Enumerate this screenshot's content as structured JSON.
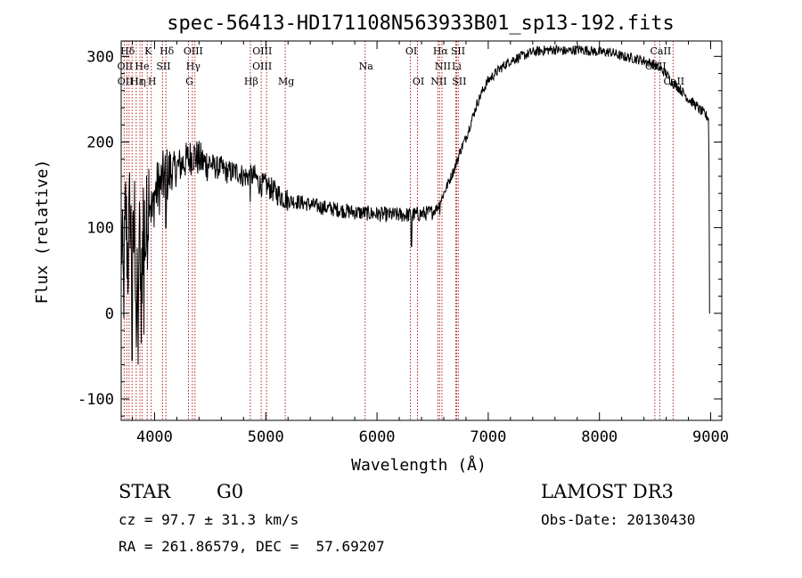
{
  "chart_data": {
    "type": "line",
    "title": "spec-56413-HD171108N563933B01_sp13-192.fits",
    "xlabel": "Wavelength (Å)",
    "ylabel": "Flux (relative)",
    "xlim": [
      3700,
      9100
    ],
    "ylim": [
      -125,
      318
    ],
    "xticks": [
      4000,
      5000,
      6000,
      7000,
      8000,
      9000
    ],
    "yticks": [
      -100,
      0,
      100,
      200,
      300
    ],
    "grid": false,
    "line_color": "#000000",
    "marker_color": "#b22222",
    "anchors": [
      [
        3700,
        100
      ],
      [
        3720,
        20
      ],
      [
        3740,
        120
      ],
      [
        3760,
        60
      ],
      [
        3780,
        130
      ],
      [
        3800,
        40
      ],
      [
        3820,
        110
      ],
      [
        3840,
        -10
      ],
      [
        3860,
        90
      ],
      [
        3880,
        30
      ],
      [
        3900,
        120
      ],
      [
        3920,
        80
      ],
      [
        3950,
        150
      ],
      [
        3980,
        110
      ],
      [
        4000,
        140
      ],
      [
        4050,
        150
      ],
      [
        4100,
        160
      ],
      [
        4150,
        165
      ],
      [
        4200,
        170
      ],
      [
        4250,
        175
      ],
      [
        4300,
        180
      ],
      [
        4350,
        185
      ],
      [
        4400,
        180
      ],
      [
        4450,
        175
      ],
      [
        4500,
        175
      ],
      [
        4550,
        170
      ],
      [
        4600,
        170
      ],
      [
        4650,
        165
      ],
      [
        4700,
        165
      ],
      [
        4750,
        165
      ],
      [
        4800,
        160
      ],
      [
        4850,
        160
      ],
      [
        4900,
        160
      ],
      [
        4950,
        150
      ],
      [
        5000,
        150
      ],
      [
        5100,
        140
      ],
      [
        5200,
        132
      ],
      [
        5300,
        130
      ],
      [
        5400,
        127
      ],
      [
        5500,
        124
      ],
      [
        5600,
        122
      ],
      [
        5700,
        120
      ],
      [
        5800,
        118
      ],
      [
        5900,
        117
      ],
      [
        6000,
        116
      ],
      [
        6100,
        115
      ],
      [
        6200,
        115
      ],
      [
        6300,
        115
      ],
      [
        6400,
        116
      ],
      [
        6500,
        118
      ],
      [
        6550,
        125
      ],
      [
        6600,
        140
      ],
      [
        6650,
        155
      ],
      [
        6700,
        170
      ],
      [
        6750,
        190
      ],
      [
        6800,
        205
      ],
      [
        6850,
        225
      ],
      [
        6900,
        245
      ],
      [
        6950,
        260
      ],
      [
        7000,
        272
      ],
      [
        7100,
        285
      ],
      [
        7200,
        295
      ],
      [
        7300,
        300
      ],
      [
        7400,
        305
      ],
      [
        7500,
        307
      ],
      [
        7600,
        308
      ],
      [
        7700,
        306
      ],
      [
        7800,
        308
      ],
      [
        7900,
        307
      ],
      [
        8000,
        305
      ],
      [
        8100,
        305
      ],
      [
        8200,
        300
      ],
      [
        8300,
        298
      ],
      [
        8400,
        295
      ],
      [
        8500,
        290
      ],
      [
        8600,
        280
      ],
      [
        8650,
        270
      ],
      [
        8700,
        265
      ],
      [
        8750,
        258
      ],
      [
        8800,
        250
      ],
      [
        8850,
        245
      ],
      [
        8900,
        238
      ],
      [
        8950,
        232
      ],
      [
        8980,
        228
      ]
    ],
    "dips": [
      {
        "x": 3798,
        "y": -55
      },
      {
        "x": 3835,
        "y": -40
      },
      {
        "x": 3852,
        "y": -60
      },
      {
        "x": 3880,
        "y": -35
      },
      {
        "x": 3905,
        "y": -25
      },
      {
        "x": 4102,
        "y": 100
      },
      {
        "x": 4861,
        "y": 130
      },
      {
        "x": 6310,
        "y": 78
      },
      {
        "x": 6563,
        "y": 115
      }
    ],
    "lines": [
      {
        "label": "Hδ",
        "x": 3750,
        "row": 0
      },
      {
        "label": "K",
        "x": 3934,
        "row": 0
      },
      {
        "label": "Hδ",
        "x": 4102,
        "row": 0
      },
      {
        "label": "OIII",
        "x": 4340,
        "row": 0
      },
      {
        "label": "OIII",
        "x": 4960,
        "row": 0
      },
      {
        "label": "OI",
        "x": 6300,
        "row": 0
      },
      {
        "label": "Hα",
        "x": 6563,
        "row": 0
      },
      {
        "label": "SII",
        "x": 6720,
        "row": 0
      },
      {
        "label": "CaII",
        "x": 8542,
        "row": 0
      },
      {
        "label": "OII",
        "x": 3727,
        "row": 1
      },
      {
        "label": "He",
        "x": 3880,
        "row": 1
      },
      {
        "label": "SII",
        "x": 4072,
        "row": 1
      },
      {
        "label": "Hγ",
        "x": 4340,
        "row": 1
      },
      {
        "label": "OIII",
        "x": 4959,
        "row": 1
      },
      {
        "label": "Na",
        "x": 5893,
        "row": 1
      },
      {
        "label": "NII",
        "x": 6584,
        "row": 1
      },
      {
        "label": "Li",
        "x": 6708,
        "row": 1
      },
      {
        "label": "CaII",
        "x": 8498,
        "row": 1
      },
      {
        "label": "OII",
        "x": 3729,
        "row": 2
      },
      {
        "label": "Hε",
        "x": 3835,
        "row": 2
      },
      {
        "label": "η",
        "x": 3889,
        "row": 2
      },
      {
        "label": "H",
        "x": 3970,
        "row": 2
      },
      {
        "label": "G",
        "x": 4305,
        "row": 2
      },
      {
        "label": "Hβ",
        "x": 4861,
        "row": 2
      },
      {
        "label": "Mg",
        "x": 5175,
        "row": 2
      },
      {
        "label": "OI",
        "x": 6364,
        "row": 2
      },
      {
        "label": "NII",
        "x": 6548,
        "row": 2
      },
      {
        "label": "SII",
        "x": 6731,
        "row": 2
      },
      {
        "label": "CaII",
        "x": 8662,
        "row": 2
      }
    ],
    "marker_x": [
      3727,
      3750,
      3771,
      3798,
      3835,
      3869,
      3889,
      3934,
      3970,
      4072,
      4102,
      4305,
      4340,
      4363,
      4861,
      4959,
      5007,
      5175,
      5893,
      6300,
      6364,
      6548,
      6563,
      6584,
      6708,
      6716,
      6731,
      8498,
      8542,
      8662
    ]
  },
  "info": {
    "class": "STAR",
    "subclass": "G0",
    "survey": "LAMOST DR3",
    "cz": "cz = 97.7 ± 31.3 km/s",
    "obs_date": "Obs-Date: 20130430",
    "coords": "RA = 261.86579, DEC =  57.69207"
  }
}
